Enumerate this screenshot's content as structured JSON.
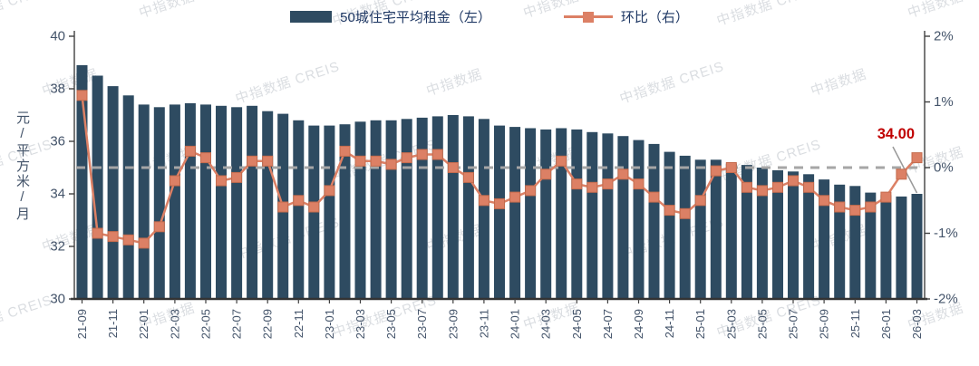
{
  "legend": {
    "bar_label": "50城住宅平均租金（左）",
    "line_label": "环比（右）"
  },
  "watermark": {
    "text": "中指数据 CREIS",
    "brand": "中指数据"
  },
  "chart_data": {
    "type": "bar",
    "combo": "bar+line",
    "title": "",
    "xlabel": "",
    "categories": [
      "21-09",
      "21-10",
      "21-11",
      "21-12",
      "22-01",
      "22-02",
      "22-03",
      "22-04",
      "22-05",
      "22-06",
      "22-07",
      "22-08",
      "22-09",
      "22-10",
      "22-11",
      "22-12",
      "23-01",
      "23-02",
      "23-03",
      "23-04",
      "23-05",
      "23-06",
      "23-07",
      "23-08",
      "23-09",
      "23-10",
      "23-11",
      "23-12",
      "24-01",
      "24-02",
      "24-03",
      "24-04",
      "24-05",
      "24-06",
      "24-07",
      "24-08",
      "24-09",
      "24-10",
      "24-11",
      "24-12",
      "25-01",
      "25-02",
      "25-03",
      "25-04",
      "25-05",
      "25-06",
      "25-07",
      "25-08",
      "25-09",
      "25-10",
      "25-11",
      "25-12",
      "26-01",
      "26-02",
      "26-03"
    ],
    "x_tick_labels": [
      "21-09",
      "21-11",
      "22-01",
      "22-03",
      "22-05",
      "22-07",
      "22-09",
      "22-11",
      "23-01",
      "23-03",
      "23-05",
      "23-07",
      "23-09",
      "23-11",
      "24-01",
      "24-03",
      "24-05",
      "24-07",
      "24-09",
      "24-11",
      "25-01",
      "25-03",
      "25-05",
      "25-07",
      "25-09",
      "25-11",
      "26-01",
      "26-03"
    ],
    "series": [
      {
        "name": "50城住宅平均租金（左）",
        "type": "bar",
        "axis": "left",
        "unit": "元/平方米/月",
        "color": "#2E4B61",
        "values": [
          38.9,
          38.5,
          38.1,
          37.75,
          37.4,
          37.3,
          37.4,
          37.45,
          37.4,
          37.35,
          37.3,
          37.35,
          37.15,
          37.05,
          36.8,
          36.6,
          36.6,
          36.65,
          36.75,
          36.8,
          36.8,
          36.85,
          36.9,
          36.95,
          37.0,
          36.95,
          36.85,
          36.6,
          36.55,
          36.5,
          36.45,
          36.5,
          36.45,
          36.35,
          36.3,
          36.2,
          36.05,
          35.9,
          35.6,
          35.45,
          35.3,
          35.3,
          35.15,
          35.1,
          35.0,
          34.9,
          34.85,
          34.75,
          34.55,
          34.35,
          34.3,
          34.05,
          33.95,
          33.9,
          34.0
        ]
      },
      {
        "name": "环比（右）",
        "type": "line",
        "axis": "right",
        "unit": "%",
        "color": "#DC8065",
        "values": [
          1.1,
          -1.0,
          -1.05,
          -1.1,
          -1.15,
          -0.9,
          -0.2,
          0.25,
          0.15,
          -0.2,
          -0.15,
          0.1,
          0.1,
          -0.6,
          -0.5,
          -0.6,
          -0.35,
          0.25,
          0.1,
          0.1,
          0.05,
          0.15,
          0.2,
          0.2,
          0.0,
          -0.15,
          -0.5,
          -0.55,
          -0.45,
          -0.35,
          -0.1,
          0.1,
          -0.25,
          -0.3,
          -0.25,
          -0.1,
          -0.25,
          -0.45,
          -0.65,
          -0.7,
          -0.5,
          -0.05,
          0.0,
          -0.3,
          -0.35,
          -0.3,
          -0.2,
          -0.3,
          -0.5,
          -0.6,
          -0.65,
          -0.6,
          -0.45,
          -0.1,
          0.15
        ]
      }
    ],
    "left_axis": {
      "title": "元/平方米/月",
      "min": 30,
      "max": 40,
      "tick_values": [
        40,
        38,
        36,
        34,
        32,
        30
      ],
      "tick_labels": [
        "40",
        "38",
        "36",
        "34",
        "32",
        "30"
      ]
    },
    "right_axis": {
      "min": -2,
      "max": 2,
      "tick_values": [
        2,
        1,
        0,
        -1,
        -2
      ],
      "tick_labels": [
        "2%",
        "1%",
        "0%",
        "-1%",
        "-2%"
      ]
    },
    "reference_line": {
      "axis": "right",
      "value": 0,
      "style": "dashed",
      "color": "#A6A6A6"
    },
    "annotation": {
      "text": "34.00",
      "target_category": "26-03",
      "target_value": 34.0,
      "color": "#C00000"
    },
    "legend_position": "top",
    "grid": false
  }
}
